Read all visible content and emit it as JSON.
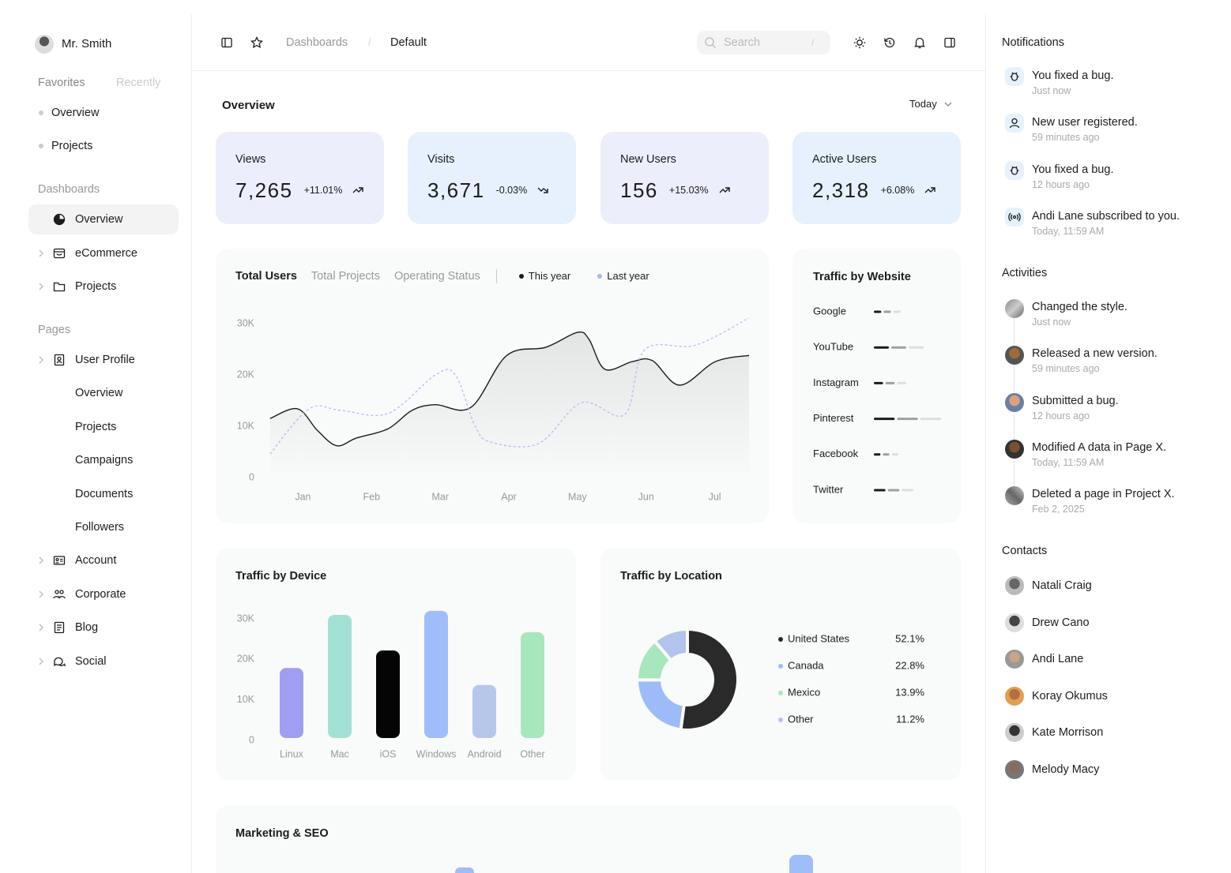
{
  "sidebar": {
    "user": "Mr. Smith",
    "tabs": [
      "Favorites",
      "Recently"
    ],
    "favorites": [
      "Overview",
      "Projects"
    ],
    "dashboards": {
      "title": "Dashboards",
      "items": [
        "Overview",
        "eCommerce",
        "Projects"
      ]
    },
    "pages": {
      "title": "Pages",
      "items": [
        "User Profile",
        "Overview",
        "Projects",
        "Campaigns",
        "Documents",
        "Followers",
        "Account",
        "Corporate",
        "Blog",
        "Social"
      ]
    }
  },
  "header": {
    "breadcrumbs": [
      "Dashboards",
      "Default"
    ],
    "separator": "/",
    "search": "Search",
    "shortcut": "/"
  },
  "overview": {
    "title": "Overview",
    "period": "Today",
    "stats": [
      {
        "label": "Views",
        "value": "7,265",
        "change": "+11.01%"
      },
      {
        "label": "Visits",
        "value": "3,671",
        "change": "-0.03%"
      },
      {
        "label": "New Users",
        "value": "156",
        "change": "+15.03%"
      },
      {
        "label": "Active Users",
        "value": "2,318",
        "change": "+6.08%"
      }
    ]
  },
  "chart_data": [
    {
      "type": "line",
      "tabs": [
        "Total Users",
        "Total Projects",
        "Operating Status"
      ],
      "xlim": [
        -0.5,
        6.5
      ],
      "xticks": [
        {
          "value": 0,
          "label": "Jan"
        },
        {
          "value": 1,
          "label": "Feb"
        },
        {
          "value": 2,
          "label": "Mar"
        },
        {
          "value": 3,
          "label": "Apr"
        },
        {
          "value": 4,
          "label": "May"
        },
        {
          "value": 5,
          "label": "Jun"
        },
        {
          "value": 6,
          "label": "Jul"
        }
      ],
      "ylim": [
        0,
        30000
      ],
      "yticks": [
        {
          "value": 0,
          "label": "0"
        },
        {
          "value": 10000,
          "label": "10K"
        },
        {
          "value": 20000,
          "label": "20K"
        },
        {
          "value": 30000,
          "label": "30K"
        }
      ],
      "series": [
        {
          "name": "This year",
          "color": "#1c1c1c",
          "x": [
            -0.48,
            -0.08,
            0.21,
            0.49,
            0.78,
            1.24,
            1.59,
            1.93,
            2.45,
            2.97,
            3.54,
            4.0,
            4.17,
            4.4,
            4.8,
            5.09,
            5.49,
            6.01,
            6.5
          ],
          "values": [
            11500,
            13400,
            9200,
            6200,
            7700,
            9500,
            13100,
            14200,
            13700,
            23800,
            25400,
            28300,
            26900,
            21100,
            22600,
            22800,
            18000,
            22600,
            23800
          ]
        },
        {
          "name": "Last year",
          "color": "#a8b8f0",
          "dashed": true,
          "x": [
            -0.48,
            0.09,
            0.55,
            1.24,
            1.93,
            2.22,
            2.51,
            2.74,
            3.43,
            4.06,
            4.69,
            4.98,
            5.72,
            6.5
          ],
          "values": [
            4600,
            13400,
            13100,
            12500,
            20000,
            20000,
            10000,
            6900,
            6600,
            14600,
            12300,
            24900,
            25800,
            31100
          ]
        }
      ]
    },
    {
      "type": "segmented",
      "title": "Traffic by Website",
      "categories": [
        "Google",
        "YouTube",
        "Instagram",
        "Pinterest",
        "Facebook",
        "Twitter"
      ],
      "values": [
        34,
        63,
        41,
        85,
        31,
        50
      ],
      "segment_colors": [
        "#1c1c1c",
        "#a0a0a0",
        "#dedede"
      ]
    },
    {
      "type": "bar",
      "title": "Traffic by Device",
      "categories": [
        "Linux",
        "Mac",
        "iOS",
        "Windows",
        "Android",
        "Other"
      ],
      "values": [
        17300,
        30400,
        21600,
        31400,
        13100,
        26100
      ],
      "colors": [
        "#a09ef0",
        "#a3e0d4",
        "#050505",
        "#9fbdf9",
        "#b5c8ec",
        "#a6e7bc"
      ],
      "ylim": [
        0,
        30000
      ],
      "yticks": [
        {
          "value": 0,
          "label": "0"
        },
        {
          "value": 10000,
          "label": "10K"
        },
        {
          "value": 20000,
          "label": "20K"
        },
        {
          "value": 30000,
          "label": "30K"
        }
      ]
    },
    {
      "type": "donut",
      "title": "Traffic by Location",
      "categories": [
        "United States",
        "Canada",
        "Mexico",
        "Other"
      ],
      "values": [
        52.1,
        22.8,
        13.9,
        11.2
      ],
      "value_labels": [
        "52.1%",
        "22.8%",
        "13.9%",
        "11.2%"
      ],
      "colors": [
        "#2a2a2a",
        "#9dbbf8",
        "#a8e6bd",
        "#b2c3ec"
      ]
    }
  ],
  "marketing": {
    "title": "Marketing & SEO"
  },
  "notifications": {
    "title": "Notifications",
    "items": [
      {
        "text": "You fixed a bug.",
        "time": "Just now"
      },
      {
        "text": "New user registered.",
        "time": "59 minutes ago"
      },
      {
        "text": "You fixed a bug.",
        "time": "12 hours ago"
      },
      {
        "text": "Andi Lane subscribed to you.",
        "time": "Today, 11:59 AM"
      }
    ]
  },
  "activities": {
    "title": "Activities",
    "items": [
      {
        "text": "Changed the style.",
        "time": "Just now"
      },
      {
        "text": "Released a new version.",
        "time": "59 minutes ago"
      },
      {
        "text": "Submitted a bug.",
        "time": "12 hours ago"
      },
      {
        "text": "Modified A data in Page X.",
        "time": "Today, 11:59 AM"
      },
      {
        "text": "Deleted a page in Project X.",
        "time": "Feb 2, 2025"
      }
    ]
  },
  "contacts": {
    "title": "Contacts",
    "items": [
      "Natali Craig",
      "Drew Cano",
      "Andi Lane",
      "Koray Okumus",
      "Kate Morrison",
      "Melody Macy"
    ]
  }
}
